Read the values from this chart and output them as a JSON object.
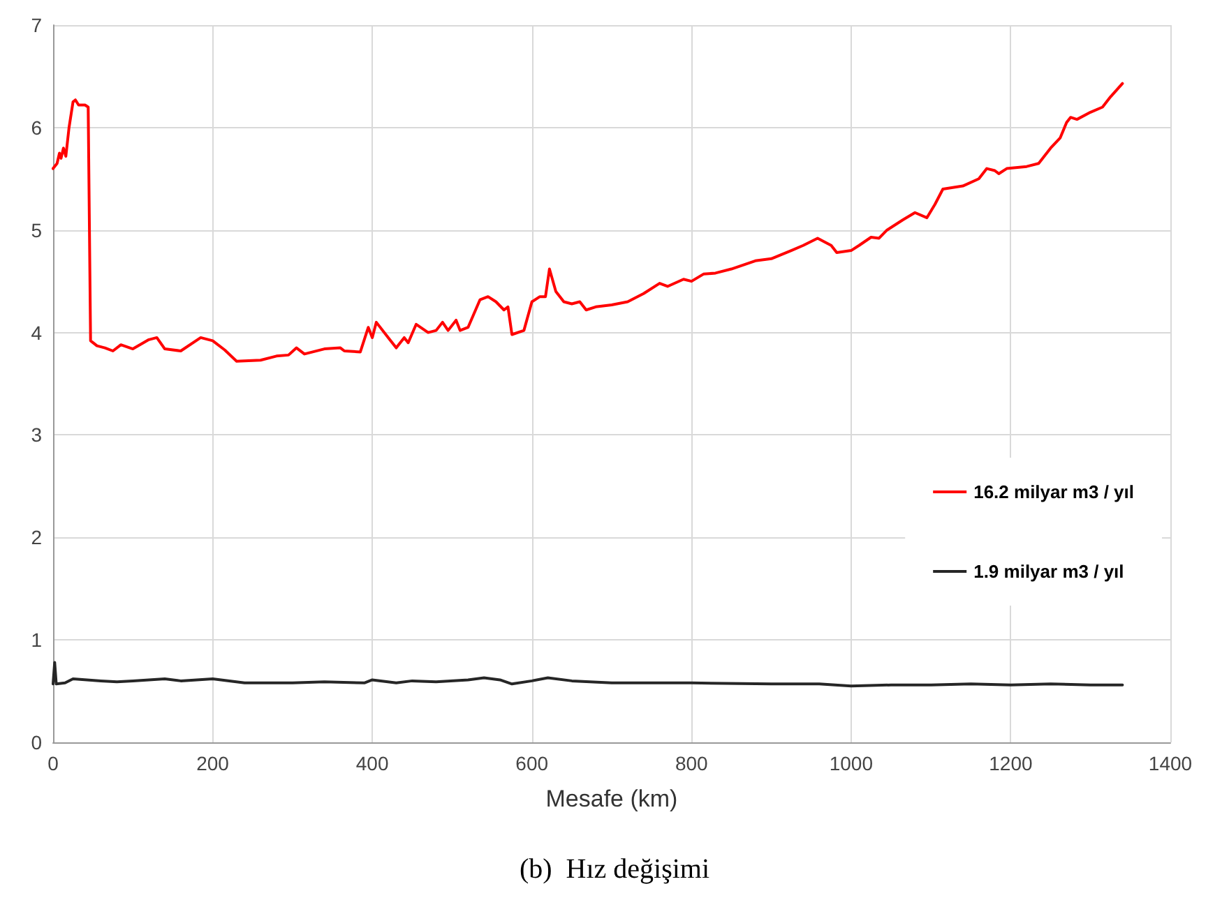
{
  "chart_data": {
    "type": "line",
    "title": "(b)  Hız değişimi",
    "xlabel": "Mesafe (km)",
    "xlim": [
      0,
      1400
    ],
    "xticks": [
      0,
      200,
      400,
      600,
      800,
      1000,
      1200,
      1400
    ],
    "ylim": [
      0,
      7
    ],
    "yticks": [
      0,
      1,
      2,
      3,
      4,
      5,
      6,
      7
    ],
    "grid": true,
    "legend": "right",
    "marker": "none",
    "line_style": "solid",
    "series": [
      {
        "name": "16.2 milyar m3 / yıl",
        "color": "#ff0000",
        "x": [
          0,
          5,
          8,
          10,
          13,
          16,
          20,
          25,
          28,
          32,
          40,
          44,
          47,
          55,
          65,
          75,
          85,
          100,
          120,
          130,
          140,
          160,
          185,
          200,
          215,
          230,
          260,
          280,
          295,
          305,
          315,
          340,
          360,
          365,
          385,
          395,
          400,
          405,
          420,
          430,
          440,
          445,
          455,
          470,
          480,
          488,
          495,
          505,
          510,
          520,
          535,
          545,
          555,
          565,
          570,
          575,
          590,
          600,
          610,
          617,
          622,
          630,
          640,
          650,
          660,
          668,
          680,
          700,
          720,
          740,
          760,
          770,
          790,
          800,
          815,
          830,
          850,
          880,
          900,
          925,
          940,
          958,
          975,
          982,
          1000,
          1010,
          1025,
          1035,
          1045,
          1065,
          1080,
          1095,
          1105,
          1115,
          1140,
          1160,
          1170,
          1180,
          1185,
          1195,
          1220,
          1235,
          1250,
          1262,
          1270,
          1275,
          1283,
          1300,
          1315,
          1325,
          1340
        ],
        "values": [
          5.6,
          5.65,
          5.75,
          5.7,
          5.8,
          5.72,
          6.0,
          6.25,
          6.27,
          6.22,
          6.22,
          6.2,
          3.92,
          3.87,
          3.85,
          3.82,
          3.88,
          3.84,
          3.93,
          3.95,
          3.84,
          3.82,
          3.95,
          3.92,
          3.83,
          3.72,
          3.73,
          3.77,
          3.78,
          3.85,
          3.79,
          3.84,
          3.85,
          3.82,
          3.81,
          4.05,
          3.95,
          4.1,
          3.95,
          3.85,
          3.95,
          3.9,
          4.08,
          4.0,
          4.02,
          4.1,
          4.02,
          4.12,
          4.02,
          4.05,
          4.32,
          4.35,
          4.3,
          4.22,
          4.25,
          3.98,
          4.02,
          4.3,
          4.35,
          4.35,
          4.62,
          4.4,
          4.3,
          4.28,
          4.3,
          4.22,
          4.25,
          4.27,
          4.3,
          4.38,
          4.48,
          4.45,
          4.52,
          4.5,
          4.57,
          4.58,
          4.62,
          4.7,
          4.72,
          4.8,
          4.85,
          4.92,
          4.85,
          4.78,
          4.8,
          4.85,
          4.93,
          4.92,
          5.0,
          5.1,
          5.17,
          5.12,
          5.25,
          5.4,
          5.43,
          5.5,
          5.6,
          5.58,
          5.55,
          5.6,
          5.62,
          5.65,
          5.8,
          5.9,
          6.05,
          6.1,
          6.08,
          6.15,
          6.2,
          6.3,
          6.43
        ]
      },
      {
        "name": "1.9 milyar m3 / yıl",
        "color": "#262626",
        "x": [
          0,
          2,
          4,
          15,
          25,
          60,
          80,
          100,
          140,
          160,
          200,
          240,
          300,
          340,
          390,
          400,
          430,
          450,
          480,
          520,
          540,
          560,
          575,
          600,
          620,
          650,
          700,
          800,
          900,
          960,
          1000,
          1050,
          1100,
          1150,
          1200,
          1250,
          1300,
          1340
        ],
        "values": [
          0.57,
          0.78,
          0.57,
          0.58,
          0.62,
          0.6,
          0.59,
          0.6,
          0.62,
          0.6,
          0.62,
          0.58,
          0.58,
          0.59,
          0.58,
          0.61,
          0.58,
          0.6,
          0.59,
          0.61,
          0.63,
          0.61,
          0.57,
          0.6,
          0.63,
          0.6,
          0.58,
          0.58,
          0.57,
          0.57,
          0.55,
          0.56,
          0.56,
          0.57,
          0.56,
          0.57,
          0.56,
          0.56
        ]
      }
    ]
  }
}
